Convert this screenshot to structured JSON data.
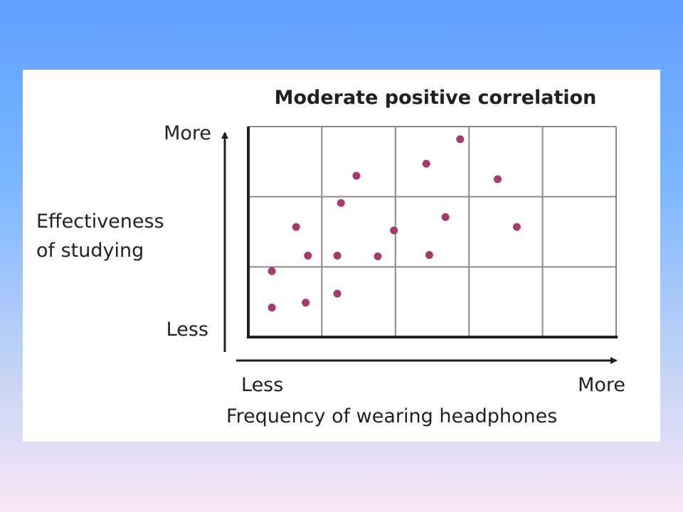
{
  "chart_data": {
    "type": "scatter",
    "title": "Moderate positive correlation",
    "xlabel": "Frequency of wearing headphones",
    "ylabel_lines": [
      "Effectiveness",
      "of studying"
    ],
    "x_ticks": {
      "low": "Less",
      "high": "More"
    },
    "y_ticks": {
      "low": "Less",
      "high": "More"
    },
    "xlim": [
      0,
      5
    ],
    "ylim": [
      0,
      3
    ],
    "grid": true,
    "grid_cols": 5,
    "grid_rows": 3,
    "point_color": "#a8396f",
    "points": [
      {
        "x": 0.32,
        "y": 0.42
      },
      {
        "x": 0.78,
        "y": 0.49
      },
      {
        "x": 1.21,
        "y": 0.62
      },
      {
        "x": 0.32,
        "y": 0.94
      },
      {
        "x": 0.81,
        "y": 1.16
      },
      {
        "x": 1.21,
        "y": 1.16
      },
      {
        "x": 1.76,
        "y": 1.15
      },
      {
        "x": 2.46,
        "y": 1.17
      },
      {
        "x": 0.65,
        "y": 1.57
      },
      {
        "x": 1.98,
        "y": 1.52
      },
      {
        "x": 2.68,
        "y": 1.71
      },
      {
        "x": 1.26,
        "y": 1.91
      },
      {
        "x": 3.65,
        "y": 1.57
      },
      {
        "x": 1.47,
        "y": 2.3
      },
      {
        "x": 2.42,
        "y": 2.47
      },
      {
        "x": 3.39,
        "y": 2.25
      },
      {
        "x": 2.88,
        "y": 2.82
      }
    ]
  }
}
